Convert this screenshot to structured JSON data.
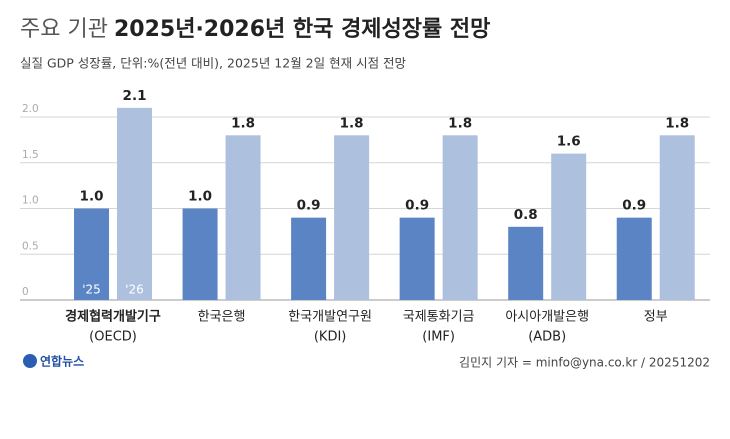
{
  "chart_data": {
    "type": "bar",
    "title": [
      "주요 기관",
      "2025년·2026년 한국 경제성장률 전망"
    ],
    "subtitle": "실질 GDP 성장률, 단위:%(전년 대비), 2025년 12월 2일 현재 시점 전망",
    "categories": [
      [
        "경제협력개발기구",
        "(OECD)"
      ],
      [
        "한국은행"
      ],
      [
        "한국개발연구원",
        "(KDI)"
      ],
      [
        "국제통화기금",
        "(IMF)"
      ],
      [
        "아시아개발은행",
        "(ADB)"
      ],
      [
        "정부"
      ]
    ],
    "series": [
      {
        "name": "'25",
        "color": "#5b84c4",
        "values": [
          1.0,
          1.0,
          0.9,
          0.9,
          0.8,
          0.9
        ],
        "value_labels": [
          "1.0",
          "1.0",
          "0.9",
          "0.9",
          "0.8",
          "0.9"
        ]
      },
      {
        "name": "'26",
        "color": "#adc0dd",
        "values": [
          2.1,
          1.8,
          1.8,
          1.8,
          1.6,
          1.8
        ]
      }
    ],
    "ylim": [
      0,
      2.2
    ],
    "yticks": [
      0,
      0.5,
      {
        "value": 1,
        "label": "1.0"
      },
      1.5,
      {
        "value": 2,
        "label": "2.0"
      }
    ],
    "grid": true,
    "source": "연합뉴스",
    "credit": "김민지 기자 = minfo@yna.co.kr / 20251202"
  }
}
